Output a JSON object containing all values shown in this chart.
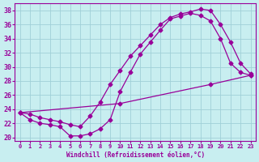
{
  "title": "",
  "xlabel": "Windchill (Refroidissement éolien,°C)",
  "ylabel": "",
  "bg_color": "#c8eef0",
  "line_color": "#990099",
  "xlim": [
    -0.5,
    23.5
  ],
  "ylim": [
    19.5,
    39.0
  ],
  "yticks": [
    20,
    22,
    24,
    26,
    28,
    30,
    32,
    34,
    36,
    38
  ],
  "xticks": [
    0,
    1,
    2,
    3,
    4,
    5,
    6,
    7,
    8,
    9,
    10,
    11,
    12,
    13,
    14,
    15,
    16,
    17,
    18,
    19,
    20,
    21,
    22,
    23
  ],
  "curve1_x": [
    0,
    1,
    2,
    3,
    4,
    5,
    6,
    7,
    8,
    9,
    10,
    11,
    12,
    13,
    14,
    15,
    16,
    17,
    18,
    19,
    20,
    21,
    22,
    23
  ],
  "curve1_y": [
    23.5,
    23.3,
    22.8,
    22.5,
    22.2,
    21.8,
    21.5,
    23.0,
    25.0,
    27.5,
    29.5,
    31.5,
    33.0,
    34.5,
    36.0,
    37.0,
    37.5,
    37.8,
    38.2,
    38.0,
    36.0,
    33.5,
    30.5,
    29.0
  ],
  "curve2_x": [
    0,
    1,
    2,
    3,
    4,
    5,
    6,
    7,
    8,
    9,
    10,
    11,
    12,
    13,
    14,
    15,
    16,
    17,
    18,
    19,
    20,
    21,
    22,
    23
  ],
  "curve2_y": [
    23.5,
    22.5,
    22.0,
    21.8,
    21.5,
    20.2,
    20.2,
    20.5,
    21.2,
    22.5,
    26.5,
    29.2,
    31.8,
    33.5,
    35.2,
    36.8,
    37.2,
    37.6,
    37.3,
    36.5,
    34.0,
    30.5,
    29.2,
    28.8
  ],
  "curve3_x": [
    0,
    10,
    19,
    23
  ],
  "curve3_y": [
    23.5,
    24.8,
    27.5,
    28.8
  ]
}
